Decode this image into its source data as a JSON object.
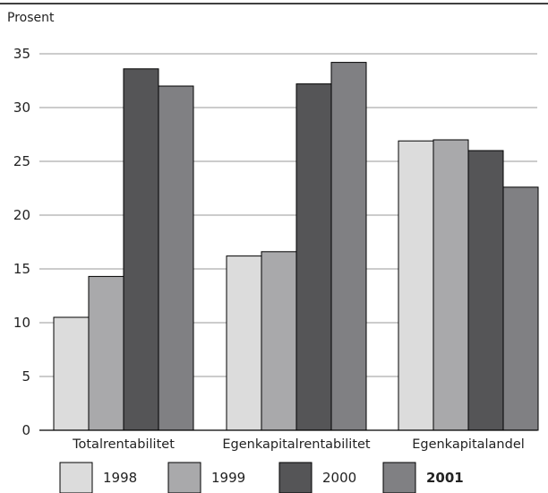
{
  "chart_data": {
    "type": "bar",
    "unit_label": "Prosent",
    "categories": [
      "Totalrentabilitet",
      "Egenkapitalrentabilitet",
      "Egenkapitalandel"
    ],
    "series": [
      {
        "name": "1998",
        "values": [
          10.5,
          16.2,
          26.9
        ],
        "color": "#dcdcdc"
      },
      {
        "name": "1999",
        "values": [
          14.3,
          16.6,
          27.0
        ],
        "color": "#a9a9ab"
      },
      {
        "name": "2000",
        "values": [
          33.6,
          32.2,
          26.0
        ],
        "color": "#555557"
      },
      {
        "name": "2001",
        "values": [
          32.0,
          34.2,
          22.6
        ],
        "color": "#808083"
      }
    ],
    "ylim": [
      0,
      35
    ],
    "yticks": [
      0,
      5,
      10,
      15,
      20,
      25,
      30,
      35
    ],
    "grid": true,
    "legend_position": "bottom"
  }
}
